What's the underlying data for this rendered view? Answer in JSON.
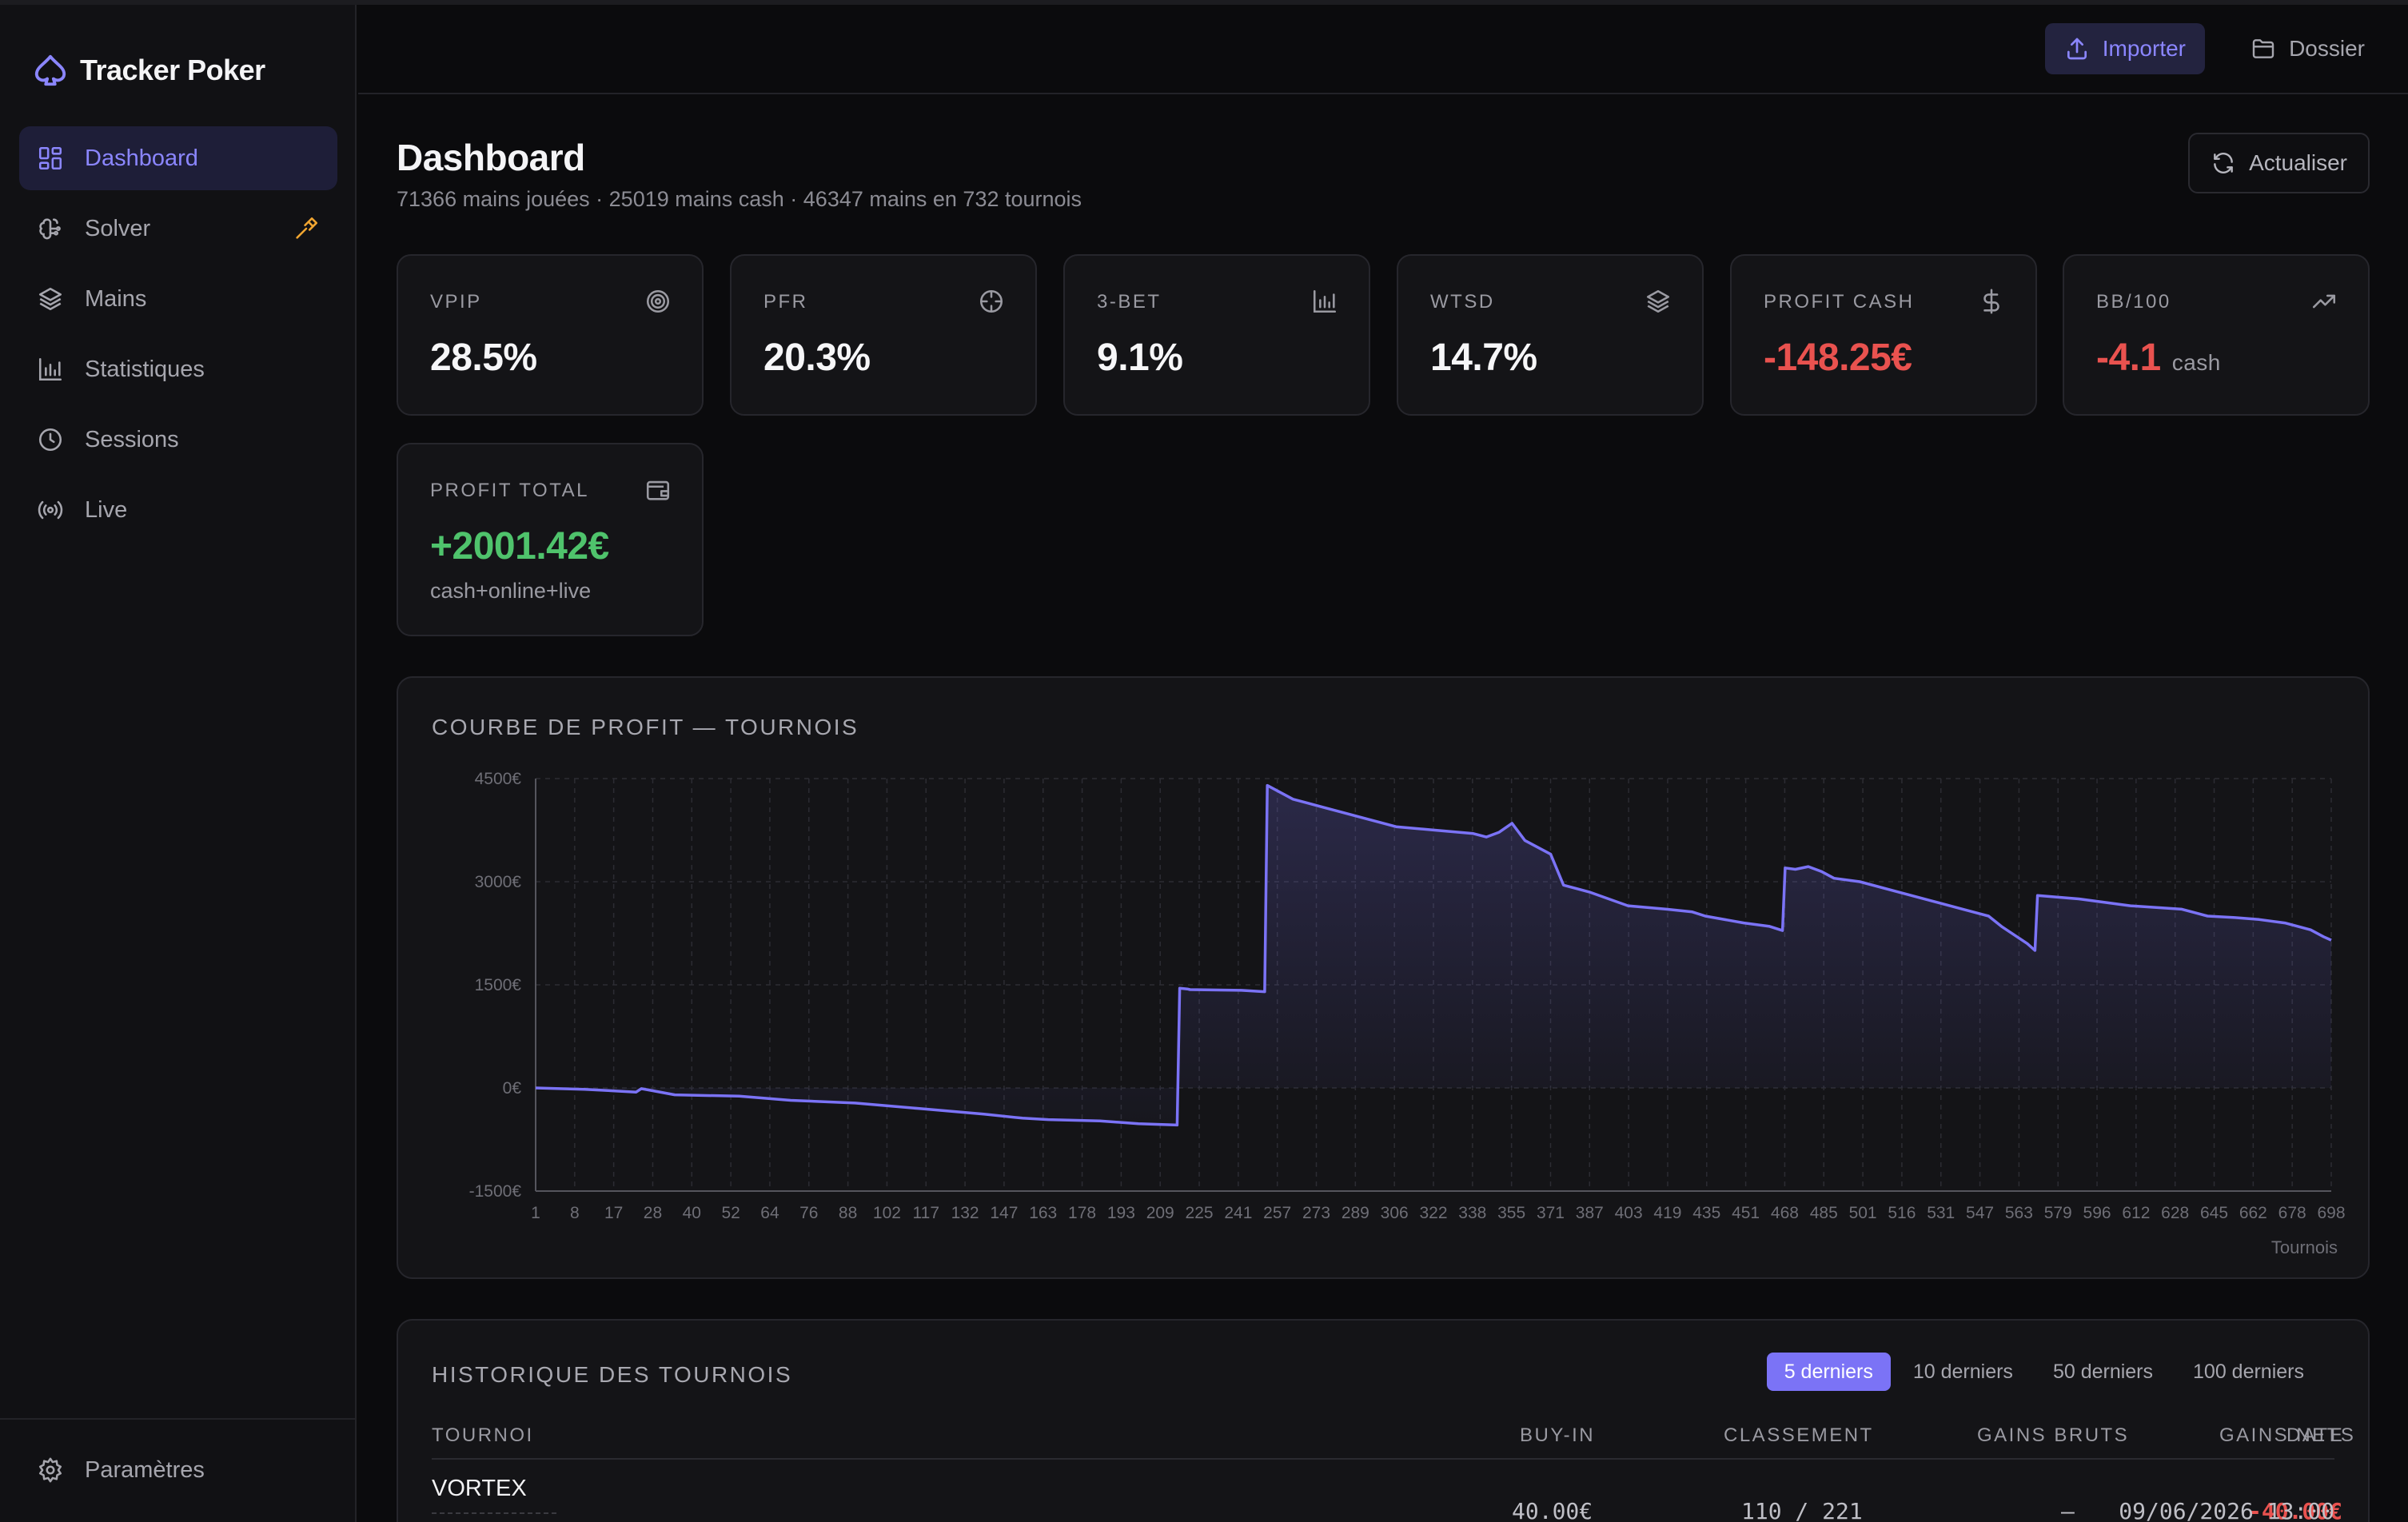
{
  "app": {
    "name": "Tracker Poker"
  },
  "sidebar": {
    "items": [
      {
        "label": "Dashboard",
        "icon": "dashboard-grid-icon",
        "active": true
      },
      {
        "label": "Solver",
        "icon": "brain-icon",
        "badge_icon": "hammer-icon"
      },
      {
        "label": "Mains",
        "icon": "layers-icon"
      },
      {
        "label": "Statistiques",
        "icon": "bar-chart-icon"
      },
      {
        "label": "Sessions",
        "icon": "clock-icon"
      },
      {
        "label": "Live",
        "icon": "broadcast-icon"
      }
    ],
    "footer": {
      "label": "Paramètres",
      "icon": "gear-icon"
    }
  },
  "topbar": {
    "import_label": "Importer",
    "folder_label": "Dossier"
  },
  "header": {
    "title": "Dashboard",
    "subtitle": "71366 mains jouées · 25019 mains cash · 46347 mains en 732 tournois",
    "refresh_label": "Actualiser"
  },
  "stats": [
    {
      "label": "VPIP",
      "value": "28.5%",
      "icon": "target-icon"
    },
    {
      "label": "PFR",
      "value": "20.3%",
      "icon": "crosshair-icon"
    },
    {
      "label": "3-BET",
      "value": "9.1%",
      "icon": "bar-chart-icon"
    },
    {
      "label": "WTSD",
      "value": "14.7%",
      "icon": "layers-icon"
    },
    {
      "label": "PROFIT CASH",
      "value": "-148.25€",
      "icon": "dollar-icon",
      "tone": "negative"
    },
    {
      "label": "BB/100",
      "value": "-4.1",
      "suffix": "cash",
      "icon": "trending-up-icon",
      "tone": "negative"
    },
    {
      "label": "PROFIT TOTAL",
      "value": "+2001.42€",
      "note": "cash+online+live",
      "icon": "wallet-icon",
      "tone": "positive"
    }
  ],
  "colors": {
    "accent": "#7b73f6",
    "negative": "#e9524f",
    "positive": "#4fc36c",
    "line": "#7b73f6"
  },
  "chart": {
    "title": "COURBE DE PROFIT — TOURNOIS"
  },
  "chart_data": {
    "type": "area",
    "title": "COURBE DE PROFIT — TOURNOIS",
    "xlabel": "Tournois",
    "ylabel": "",
    "ylim": [
      -1500,
      4500
    ],
    "xlim": [
      1,
      698
    ],
    "grid": true,
    "y_tick_labels": [
      "4500€",
      "3000€",
      "1500€",
      "0€",
      "-1500€"
    ],
    "y_ticks": [
      4500,
      3000,
      1500,
      0,
      -1500
    ],
    "x_tick_labels": [
      "1",
      "8",
      "17",
      "28",
      "40",
      "52",
      "64",
      "76",
      "88",
      "102",
      "117",
      "132",
      "147",
      "163",
      "178",
      "193",
      "209",
      "225",
      "241",
      "257",
      "273",
      "289",
      "306",
      "322",
      "338",
      "355",
      "371",
      "387",
      "403",
      "419",
      "435",
      "451",
      "468",
      "485",
      "501",
      "516",
      "531",
      "547",
      "563",
      "579",
      "596",
      "612",
      "628",
      "645",
      "662",
      "678",
      "698"
    ],
    "series": [
      {
        "x": [
          1,
          20,
          40,
          42,
          45,
          55,
          80,
          100,
          125,
          150,
          175,
          190,
          200,
          220,
          235,
          250,
          251,
          254,
          255,
          275,
          284,
          285,
          290,
          295,
          300,
          320,
          335,
          350,
          365,
          370,
          375,
          380,
          385,
          395,
          400,
          405,
          410,
          425,
          440,
          450,
          455,
          470,
          480,
          485,
          486,
          490,
          495,
          500,
          505,
          515,
          530,
          545,
          555,
          565,
          570,
          580,
          583,
          584,
          600,
          620,
          640,
          645,
          650,
          660,
          670,
          680,
          690,
          695,
          698
        ],
        "y": [
          0,
          -20,
          -60,
          -10,
          -30,
          -100,
          -120,
          -180,
          -220,
          -300,
          -380,
          -440,
          -460,
          -480,
          -520,
          -540,
          1450,
          1440,
          1430,
          1420,
          1400,
          4400,
          4300,
          4200,
          4150,
          3950,
          3800,
          3750,
          3700,
          3650,
          3720,
          3850,
          3600,
          3400,
          2950,
          2900,
          2850,
          2650,
          2600,
          2560,
          2500,
          2400,
          2350,
          2290,
          3200,
          3180,
          3220,
          3150,
          3050,
          3000,
          2850,
          2700,
          2600,
          2500,
          2350,
          2100,
          2000,
          2800,
          2750,
          2650,
          2600,
          2550,
          2500,
          2480,
          2450,
          2400,
          2300,
          2200,
          2150
        ]
      }
    ]
  },
  "history": {
    "title": "HISTORIQUE DES TOURNOIS",
    "tabs": [
      "5 derniers",
      "10 derniers",
      "50 derniers",
      "100 derniers"
    ],
    "active_tab": 0,
    "columns": [
      "TOURNOI",
      "BUY-IN",
      "CLASSEMENT",
      "GAINS BRUTS",
      "GAINS NETS",
      "DATE"
    ],
    "rows": [
      {
        "name": "VORTEX",
        "buyin": "40.00€",
        "rank": "110 / 221",
        "gross": "—",
        "net": "-40.00€",
        "date": "09/06/2026 13:00"
      }
    ]
  }
}
